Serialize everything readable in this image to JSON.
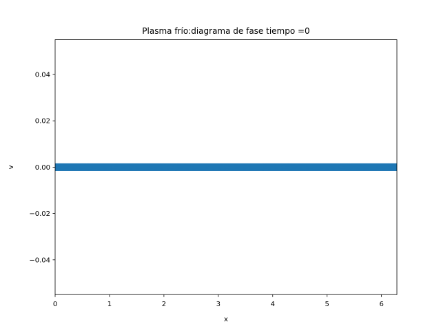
{
  "chart_data": {
    "type": "scatter",
    "title": "Plasma frío:diagrama de fase  tiempo =0",
    "xlabel": "x",
    "ylabel": "v",
    "xlim": [
      0,
      6.283185307
    ],
    "ylim": [
      -0.055,
      0.055
    ],
    "xticks": [
      0,
      1,
      2,
      3,
      4,
      5,
      6
    ],
    "xtick_labels": [
      "0",
      "1",
      "2",
      "3",
      "4",
      "5",
      "6"
    ],
    "yticks": [
      -0.04,
      -0.02,
      0.0,
      0.02,
      0.04
    ],
    "ytick_labels": [
      "−0.04",
      "−0.02",
      "0.00",
      "0.02",
      "0.04"
    ],
    "grid": false,
    "series": [
      {
        "color": "#1f77b4",
        "x_range": [
          0,
          6.283185307
        ],
        "v": 0.0,
        "n_points": 500
      }
    ]
  }
}
